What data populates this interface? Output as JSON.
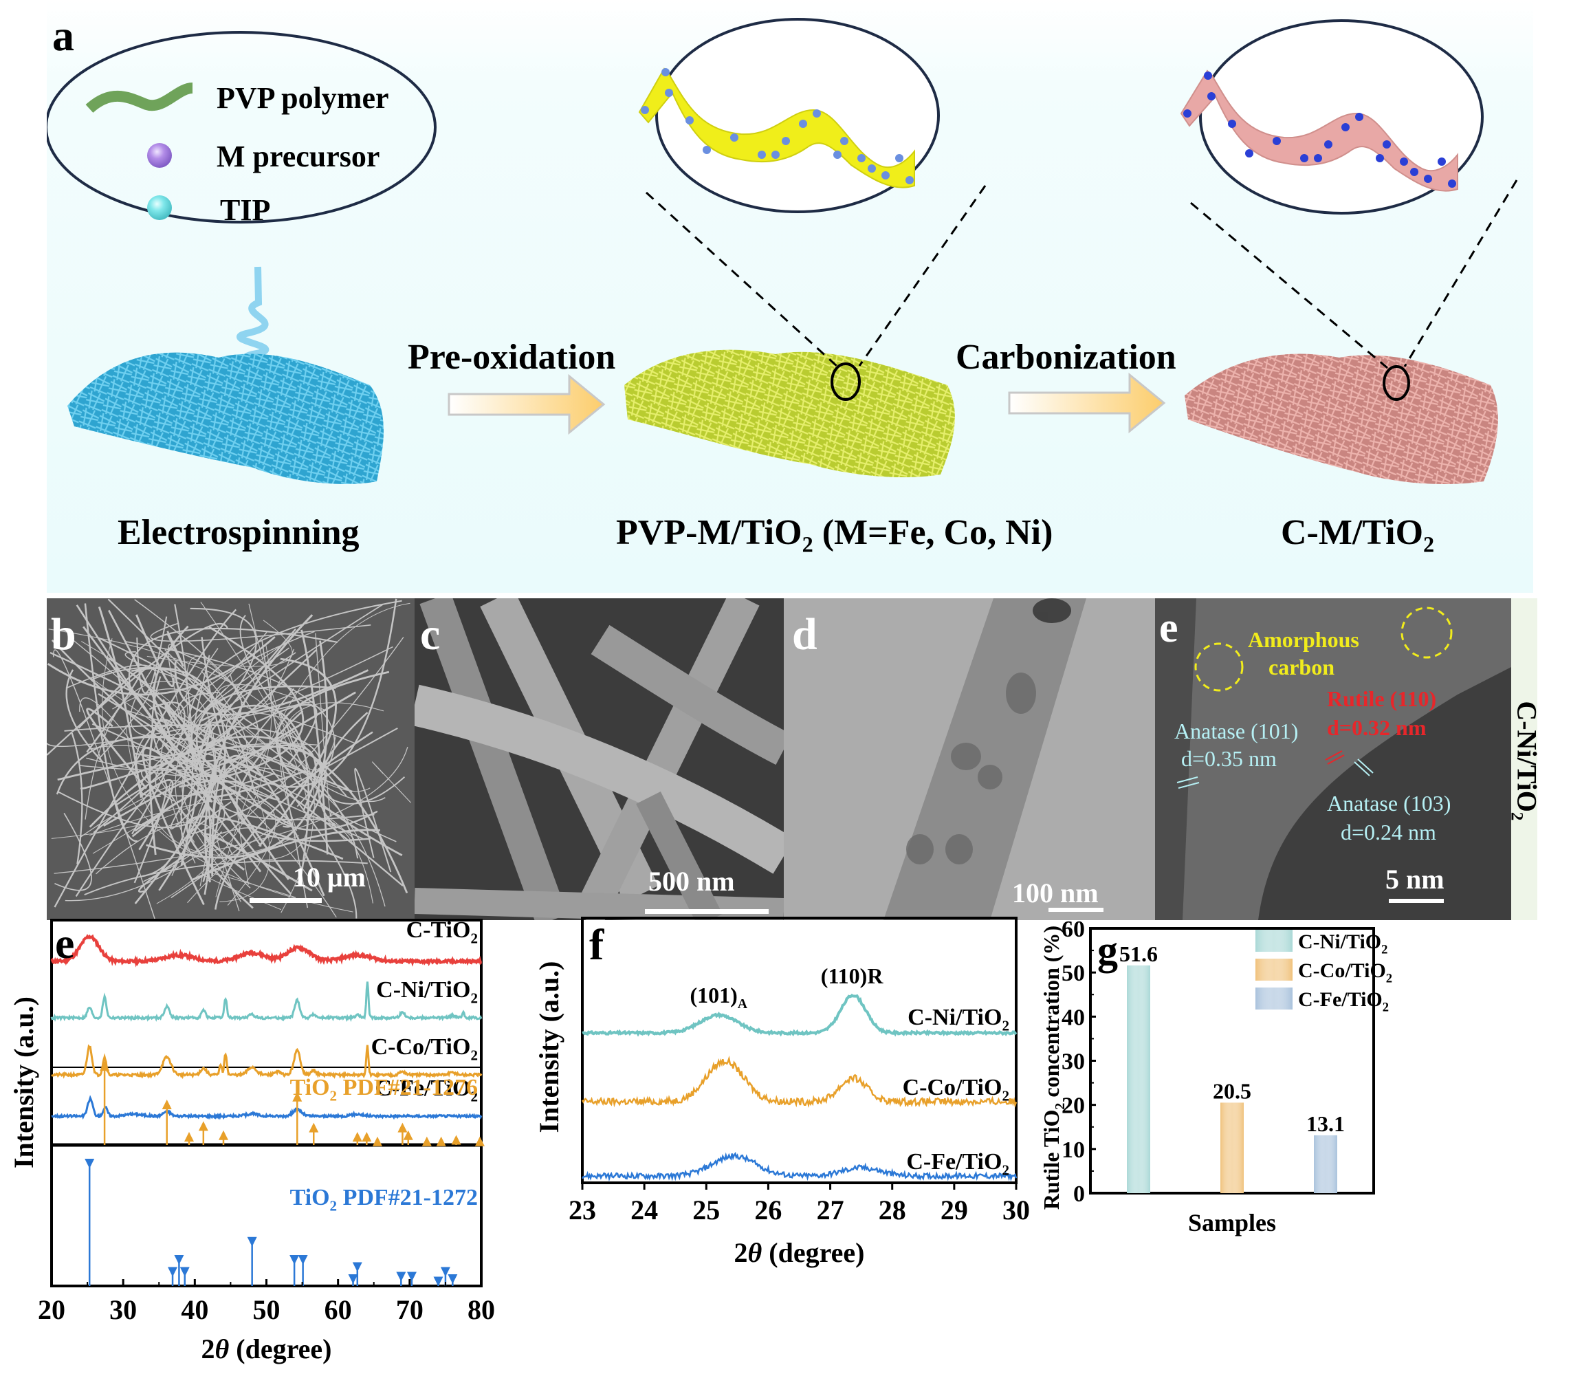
{
  "figure": {
    "panel_labels": {
      "a": "a",
      "b": "b",
      "c": "c",
      "d": "d",
      "e_tem": "e",
      "e_xrd": "e",
      "f": "f",
      "g": "g"
    }
  },
  "schematic": {
    "legend": [
      {
        "icon": "pvp-polymer-strand-icon",
        "label": "PVP polymer",
        "color": "#6fa35a"
      },
      {
        "icon": "m-precursor-sphere-icon",
        "label": "M precursor",
        "color": "#b38de8"
      },
      {
        "icon": "tip-sphere-icon",
        "label": "TIP",
        "color": "#7fe7ea"
      }
    ],
    "steps": [
      {
        "label": "Electrospinning",
        "mat_color": "#3fb3dc"
      },
      {
        "label_main": "PVP-M/TiO",
        "label_sub": "2",
        "label_tail": " (M=Fe, Co, Ni)",
        "mat_color": "#cfe04a",
        "fiber_color": "#f2ef1f"
      },
      {
        "label_main": "C-M/TiO",
        "label_sub": "2",
        "label_tail": "",
        "mat_color": "#d9958f",
        "fiber_color": "#e8a8a6"
      }
    ],
    "arrows": [
      {
        "label": "Pre-oxidation"
      },
      {
        "label": "Carbonization"
      }
    ],
    "particle_color": "#2a3fd6",
    "particle_color_light": "#6a8fe0"
  },
  "micrographs": {
    "b": {
      "scale_bar": "10 μm",
      "kind": "SEM"
    },
    "c": {
      "scale_bar": "500 nm",
      "kind": "SEM"
    },
    "d": {
      "scale_bar": "100 nm",
      "kind": "TEM"
    },
    "e": {
      "scale_bar": "5 nm",
      "kind": "HRTEM",
      "side_label_main": "C-Ni/TiO",
      "side_label_sub": "2",
      "annotations": [
        {
          "text": "Amorphous",
          "color": "#f1ec1c"
        },
        {
          "text": "carbon",
          "color": "#f1ec1c"
        },
        {
          "text": "Rutile (110)",
          "color": "#e8262a"
        },
        {
          "text": "d=0.32 nm",
          "color": "#e8262a"
        },
        {
          "text": "Anatase (101)",
          "color": "#b6f0f4"
        },
        {
          "text": "d=0.35 nm",
          "color": "#b6f0f4"
        },
        {
          "text": "Anatase (103)",
          "color": "#b6f0f4"
        },
        {
          "text": "d=0.24 nm",
          "color": "#b6f0f4"
        }
      ]
    }
  },
  "chart_data": [
    {
      "id": "xrd-wide",
      "type": "line",
      "title": "",
      "xlabel_prefix": "2",
      "xlabel_theta": "θ",
      "xlabel_suffix": " (degree)",
      "ylabel": "Intensity (a.u.)",
      "xlim": [
        20,
        80
      ],
      "xticks": [
        20,
        30,
        40,
        50,
        60,
        70,
        80
      ],
      "yticks_shown": false,
      "series": [
        {
          "name": "C-TiO2",
          "label_main": "C-TiO",
          "label_sub": "2",
          "color": "#e8403c",
          "peaks": [
            [
              25.3,
              1.0,
              1.3
            ],
            [
              37.8,
              0.25,
              2.0
            ],
            [
              48.0,
              0.35,
              1.8
            ],
            [
              54.5,
              0.55,
              1.6
            ],
            [
              62.7,
              0.25,
              2.0
            ]
          ]
        },
        {
          "name": "C-Ni/TiO2",
          "label_main": "C-Ni/TiO",
          "label_sub": "2",
          "color": "#6fc4c2",
          "peaks": [
            [
              25.3,
              0.5,
              0.3
            ],
            [
              27.4,
              1.0,
              0.25
            ],
            [
              36.1,
              0.55,
              0.35
            ],
            [
              41.2,
              0.35,
              0.3
            ],
            [
              44.3,
              0.95,
              0.18
            ],
            [
              48.0,
              0.15,
              0.4
            ],
            [
              54.3,
              0.85,
              0.35
            ],
            [
              56.6,
              0.18,
              0.3
            ],
            [
              62.8,
              0.12,
              0.3
            ],
            [
              64.1,
              1.7,
              0.15
            ],
            [
              69.0,
              0.25,
              0.35
            ],
            [
              76.0,
              0.12,
              0.3
            ],
            [
              77.5,
              0.3,
              0.15
            ]
          ]
        },
        {
          "name": "C-Co/TiO2",
          "label_main": "C-Co/TiO",
          "label_sub": "2",
          "color": "#e8a02a",
          "peaks": [
            [
              25.3,
              1.3,
              0.35
            ],
            [
              27.4,
              0.8,
              0.25
            ],
            [
              36.1,
              0.8,
              0.6
            ],
            [
              41.2,
              0.3,
              0.4
            ],
            [
              43.6,
              0.5,
              0.15
            ],
            [
              44.3,
              0.95,
              0.18
            ],
            [
              48.0,
              0.35,
              0.6
            ],
            [
              51.5,
              0.15,
              0.4
            ],
            [
              54.3,
              1.1,
              0.45
            ],
            [
              56.6,
              0.2,
              0.35
            ],
            [
              64.1,
              1.3,
              0.15
            ],
            [
              69.0,
              0.15,
              0.4
            ],
            [
              76.0,
              0.1,
              0.5
            ]
          ]
        },
        {
          "name": "C-Fe/TiO2",
          "label_main": "C-Fe/TiO",
          "label_sub": "2",
          "color": "#2b78d6",
          "peaks": [
            [
              25.4,
              0.9,
              0.35
            ],
            [
              27.5,
              0.45,
              0.3
            ],
            [
              31.5,
              0.1,
              1.2
            ],
            [
              36.1,
              0.25,
              0.5
            ],
            [
              48.0,
              0.12,
              0.8
            ],
            [
              54.3,
              0.35,
              0.6
            ],
            [
              62.7,
              0.1,
              0.8
            ]
          ]
        }
      ],
      "references": [
        {
          "name": "TiO2 PDF#21-1276",
          "label_main": "TiO",
          "label_sub": "2",
          "label_tail": " PDF#21-1276",
          "phase": "rutile",
          "color": "#e8a02a",
          "marker": "triangle-up",
          "sticks": [
            [
              27.4,
              1.0
            ],
            [
              36.1,
              0.5
            ],
            [
              39.2,
              0.08
            ],
            [
              41.2,
              0.22
            ],
            [
              44.0,
              0.1
            ],
            [
              54.3,
              0.6
            ],
            [
              56.6,
              0.2
            ],
            [
              62.7,
              0.08
            ],
            [
              64.0,
              0.08
            ],
            [
              65.5,
              0.02
            ],
            [
              69.0,
              0.2
            ],
            [
              69.8,
              0.1
            ],
            [
              72.4,
              0.02
            ],
            [
              74.4,
              0.02
            ],
            [
              76.5,
              0.04
            ],
            [
              79.8,
              0.02
            ]
          ]
        },
        {
          "name": "TiO2 PDF#21-1272",
          "label_main": "TiO",
          "label_sub": "2",
          "label_tail": " PDF#21-1272",
          "phase": "anatase",
          "color": "#2b78d6",
          "marker": "triangle-down",
          "sticks": [
            [
              25.3,
              1.0
            ],
            [
              36.9,
              0.1
            ],
            [
              37.8,
              0.2
            ],
            [
              38.6,
              0.1
            ],
            [
              48.0,
              0.35
            ],
            [
              53.9,
              0.2
            ],
            [
              55.1,
              0.2
            ],
            [
              62.1,
              0.04
            ],
            [
              62.7,
              0.14
            ],
            [
              68.8,
              0.06
            ],
            [
              70.3,
              0.06
            ],
            [
              74.0,
              0.02
            ],
            [
              75.0,
              0.1
            ],
            [
              76.0,
              0.04
            ]
          ]
        }
      ]
    },
    {
      "id": "xrd-zoom",
      "type": "line",
      "title": "",
      "xlabel_prefix": "2",
      "xlabel_theta": "θ",
      "xlabel_suffix": " (degree)",
      "ylabel": "Intensity (a.u.)",
      "xlim": [
        23,
        30
      ],
      "xticks": [
        23,
        24,
        25,
        26,
        27,
        28,
        29,
        30
      ],
      "yticks_shown": false,
      "annotations": [
        {
          "text_main": "(101)",
          "text_sub": "A",
          "x": 25.2
        },
        {
          "text_main": "(110)R",
          "text_sub": "",
          "x": 27.35
        }
      ],
      "series": [
        {
          "name": "C-Ni/TiO2",
          "label_main": "C-Ni/TiO",
          "label_sub": "2",
          "color": "#6fc4c2",
          "peaks": [
            [
              25.2,
              0.45,
              0.3
            ],
            [
              27.37,
              0.95,
              0.2
            ]
          ]
        },
        {
          "name": "C-Co/TiO2",
          "label_main": "C-Co/TiO",
          "label_sub": "2",
          "color": "#e8a02a",
          "peaks": [
            [
              25.3,
              0.95,
              0.3
            ],
            [
              27.37,
              0.55,
              0.22
            ]
          ]
        },
        {
          "name": "C-Fe/TiO2",
          "label_main": "C-Fe/TiO",
          "label_sub": "2",
          "color": "#2b78d6",
          "peaks": [
            [
              25.45,
              0.6,
              0.35
            ],
            [
              27.5,
              0.25,
              0.3
            ]
          ]
        }
      ]
    },
    {
      "id": "rutile-bar",
      "type": "bar",
      "title": "",
      "xlabel": "Samples",
      "ylabel_main": "Rutile TiO",
      "ylabel_sub": "2",
      "ylabel_tail": " concentration (%)",
      "ylim": [
        0,
        60
      ],
      "yticks": [
        0,
        10,
        20,
        30,
        40,
        50,
        60
      ],
      "categories": [
        "C-Ni/TiO2",
        "C-Co/TiO2",
        "C-Fe/TiO2"
      ],
      "values": [
        51.6,
        20.5,
        13.1
      ],
      "value_labels": [
        "51.6",
        "20.5",
        "13.1"
      ],
      "colors": [
        "#a9d8d6",
        "#f0c27c",
        "#a9c2dc"
      ],
      "legend": [
        {
          "label_main": "C-Ni/TiO",
          "label_sub": "2",
          "color": "#a9d8d6"
        },
        {
          "label_main": "C-Co/TiO",
          "label_sub": "2",
          "color": "#f0c27c"
        },
        {
          "label_main": "C-Fe/TiO",
          "label_sub": "2",
          "color": "#a9c2dc"
        }
      ],
      "legend_position": "top-right"
    }
  ]
}
